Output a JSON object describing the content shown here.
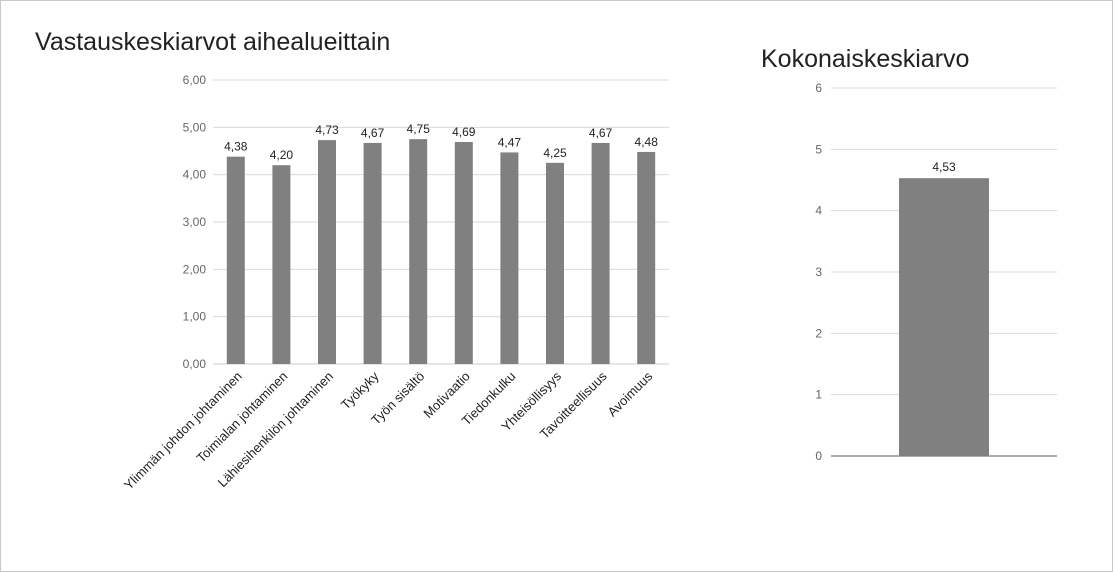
{
  "chart_data": [
    {
      "type": "bar",
      "title": "Vastauskeskiarvot aihealueittain",
      "categories": [
        "Ylimmän johdon johtaminen",
        "Toimialan johtaminen",
        "Lähiesihenkilön johtaminen",
        "Työkyky",
        "Työn sisältö",
        "Motivaatio",
        "Tiedonkulku",
        "Yhteisöllisyys",
        "Tavoitteellisuus",
        "Avoimuus"
      ],
      "values": [
        4.38,
        4.2,
        4.73,
        4.67,
        4.75,
        4.69,
        4.47,
        4.25,
        4.67,
        4.48
      ],
      "data_labels": [
        "4,38",
        "4,20",
        "4,73",
        "4,67",
        "4,75",
        "4,69",
        "4,47",
        "4,25",
        "4,67",
        "4,48"
      ],
      "yticks": [
        "0,00",
        "1,00",
        "2,00",
        "3,00",
        "4,00",
        "5,00",
        "6,00"
      ],
      "ylim": [
        0,
        6
      ],
      "xlabel": "",
      "ylabel": "",
      "grid": true,
      "legend": "none",
      "bar_color": "#808080",
      "grid_color": "#d9d9d9"
    },
    {
      "type": "bar",
      "title": "Kokonaiskeskiarvo",
      "categories": [
        ""
      ],
      "values": [
        4.53
      ],
      "data_labels": [
        "4,53"
      ],
      "yticks": [
        "0",
        "1",
        "2",
        "3",
        "4",
        "5",
        "6"
      ],
      "ylim": [
        0,
        6
      ],
      "xlabel": "",
      "ylabel": "",
      "grid": true,
      "legend": "none",
      "bar_color": "#808080",
      "grid_color": "#d9d9d9"
    }
  ]
}
